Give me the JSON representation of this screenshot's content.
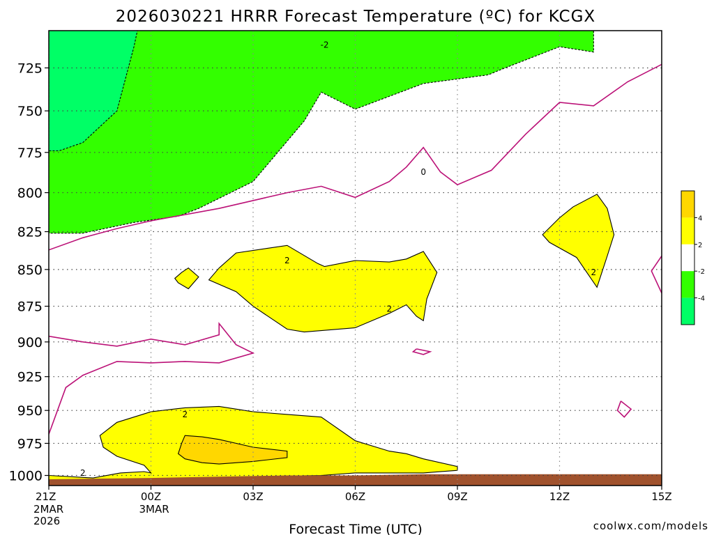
{
  "chart_data": {
    "type": "contour",
    "title": "2026030221 HRRR Forecast Temperature (ºC) for KCGX",
    "xlabel": "Forecast Time (UTC)",
    "ylabel": "",
    "credit": "coolwx.com/models",
    "x_ticks": [
      {
        "label": "21Z",
        "sub": [
          "2MAR",
          "2026"
        ]
      },
      {
        "label": "00Z",
        "sub": [
          "3MAR"
        ]
      },
      {
        "label": "03Z",
        "sub": []
      },
      {
        "label": "06Z",
        "sub": []
      },
      {
        "label": "09Z",
        "sub": []
      },
      {
        "label": "12Z",
        "sub": []
      },
      {
        "label": "15Z",
        "sub": []
      }
    ],
    "x_range_hours": [
      0,
      18
    ],
    "y_ticks": [
      725,
      750,
      775,
      800,
      825,
      850,
      875,
      900,
      925,
      950,
      975,
      1000
    ],
    "y_range_hpa": [
      704,
      1008
    ],
    "y_scale": "log-pressure",
    "grid": true,
    "colorbar": {
      "bins": [
        {
          "color": "#ffd700",
          "upper_label": "",
          "lower_label": "4"
        },
        {
          "color": "#ffff00",
          "upper_label": "4",
          "lower_label": "2"
        },
        {
          "color": "#ffffff",
          "upper_label": "2",
          "lower_label": "-2"
        },
        {
          "color": "#33ff00",
          "upper_label": "-2",
          "lower_label": "-4"
        },
        {
          "color": "#00ff66",
          "upper_label": "-4",
          "lower_label": ""
        }
      ],
      "tick_labels": [
        "4",
        "2",
        "-2",
        "-4"
      ]
    },
    "colors": {
      "zero_isotherm": "#bb1177",
      "ground": "#a0522d",
      "credit": "#e03c3c",
      "green_dark": "#00ff66",
      "green_light": "#33ff00",
      "yellow": "#ffff00",
      "gold": "#ffd700"
    },
    "contour_labels": [
      {
        "text": "-2",
        "t": 5.1,
        "p": 712
      },
      {
        "text": "0",
        "t": 8.0,
        "p": 787
      },
      {
        "text": "2",
        "t": 4.0,
        "p": 844
      },
      {
        "text": "2",
        "t": 7.0,
        "p": 877
      },
      {
        "text": "2",
        "t": 13.0,
        "p": 852
      },
      {
        "text": "2",
        "t": 1.0,
        "p": 953
      },
      {
        "text": "2",
        "t": -2.0,
        "p": 998
      }
    ],
    "regions": [
      {
        "fill": "#33ff00",
        "stroke": "#000000",
        "dash": "3,2",
        "points": [
          [
            0,
            704
          ],
          [
            13,
            704
          ],
          [
            13,
            716
          ],
          [
            12,
            713
          ],
          [
            10.4,
            725
          ],
          [
            9.9,
            729
          ],
          [
            8,
            734
          ],
          [
            6.0,
            749
          ],
          [
            5.0,
            739
          ],
          [
            4.5,
            756
          ],
          [
            3.0,
            793
          ],
          [
            1.4,
            810
          ],
          [
            0.8,
            815
          ],
          [
            -0.5,
            819
          ],
          [
            -2,
            826
          ],
          [
            -3,
            826
          ],
          [
            -3,
            704
          ]
        ]
      },
      {
        "fill": "#00ff66",
        "stroke": "#000000",
        "dash": "3,2",
        "points": [
          [
            -3,
            704
          ],
          [
            -0.4,
            704
          ],
          [
            -0.5,
            713
          ],
          [
            -1.0,
            750
          ],
          [
            -2.0,
            769
          ],
          [
            -2.7,
            774
          ],
          [
            -3,
            774
          ]
        ]
      },
      {
        "fill": "#ffff00",
        "stroke": "#000000",
        "dash": "",
        "points": [
          [
            1.7,
            857
          ],
          [
            2.0,
            849
          ],
          [
            2.5,
            839
          ],
          [
            4.0,
            834
          ],
          [
            4.9,
            846
          ],
          [
            5.1,
            848
          ],
          [
            6.0,
            844
          ],
          [
            7.0,
            845
          ],
          [
            7.5,
            843
          ],
          [
            8.0,
            838
          ],
          [
            8.4,
            852
          ],
          [
            8.1,
            870
          ],
          [
            8.0,
            885
          ],
          [
            7.8,
            882
          ],
          [
            7.5,
            874
          ],
          [
            7.0,
            880
          ],
          [
            6.0,
            890
          ],
          [
            5.0,
            892
          ],
          [
            4.5,
            893
          ],
          [
            4.0,
            891
          ],
          [
            3.0,
            875
          ],
          [
            2.5,
            865
          ]
        ]
      },
      {
        "fill": "#ffff00",
        "stroke": "#000000",
        "dash": "",
        "points": [
          [
            11.5,
            827
          ],
          [
            12.0,
            816
          ],
          [
            12.4,
            809
          ],
          [
            13.1,
            801
          ],
          [
            13.4,
            810
          ],
          [
            13.6,
            827
          ],
          [
            13.4,
            841
          ],
          [
            13.1,
            862
          ],
          [
            12.5,
            842
          ],
          [
            11.7,
            832
          ]
        ]
      },
      {
        "fill": "#ffff00",
        "stroke": "#000000",
        "dash": "",
        "points": [
          [
            0.7,
            856
          ],
          [
            0.9,
            852
          ],
          [
            1.1,
            849
          ],
          [
            1.4,
            855
          ],
          [
            1.1,
            863
          ],
          [
            0.8,
            859
          ]
        ]
      },
      {
        "fill": "#ffff00",
        "stroke": "#000000",
        "dash": "",
        "points": [
          [
            -1.7,
            1002
          ],
          [
            -0.9,
            998
          ],
          [
            -0.2,
            997
          ],
          [
            0,
            998
          ],
          [
            -0.2,
            992
          ],
          [
            -1.0,
            985
          ],
          [
            -1.4,
            978
          ],
          [
            -1.5,
            969
          ],
          [
            -1.0,
            959
          ],
          [
            0,
            951
          ],
          [
            1.0,
            948
          ],
          [
            2.0,
            947
          ],
          [
            3.0,
            951
          ],
          [
            4.0,
            953
          ],
          [
            5.0,
            955
          ],
          [
            6.0,
            973
          ],
          [
            7.0,
            981
          ],
          [
            7.5,
            983
          ],
          [
            8.0,
            987
          ],
          [
            9.0,
            993
          ],
          [
            9.0,
            996
          ],
          [
            8.0,
            998
          ],
          [
            6.0,
            998
          ],
          [
            5.0,
            1000
          ],
          [
            3.0,
            1001
          ],
          [
            1.0,
            1002
          ],
          [
            0,
            1003
          ],
          [
            -3,
            1004
          ],
          [
            -3,
            1000
          ]
        ]
      },
      {
        "fill": "#ffd700",
        "stroke": "#000000",
        "dash": "",
        "points": [
          [
            0.8,
            983
          ],
          [
            0.9,
            975
          ],
          [
            1.0,
            969
          ],
          [
            1.5,
            970
          ],
          [
            2.0,
            972
          ],
          [
            3.0,
            978
          ],
          [
            4.0,
            981
          ],
          [
            4.0,
            986
          ],
          [
            3.0,
            989
          ],
          [
            2.0,
            991
          ],
          [
            1.5,
            990
          ],
          [
            1.0,
            987
          ]
        ]
      }
    ],
    "zero_lines": [
      [
        [
          -3,
          837
        ],
        [
          -2,
          829
        ],
        [
          -1,
          823
        ],
        [
          0,
          818
        ],
        [
          2.0,
          810
        ],
        [
          4.0,
          800
        ],
        [
          5.0,
          796
        ],
        [
          6.0,
          803
        ],
        [
          7.0,
          793
        ],
        [
          7.5,
          784
        ],
        [
          8.0,
          772
        ],
        [
          8.5,
          787
        ],
        [
          9.0,
          795
        ],
        [
          10.0,
          786
        ],
        [
          11.0,
          764
        ],
        [
          12.0,
          745
        ],
        [
          13.0,
          747
        ],
        [
          14.0,
          733
        ],
        [
          15.0,
          723
        ]
      ],
      [
        [
          -3,
          896
        ],
        [
          -2.0,
          900
        ],
        [
          -1.0,
          903
        ],
        [
          0,
          898
        ],
        [
          1.0,
          902
        ],
        [
          2.0,
          895
        ],
        [
          2.0,
          887
        ],
        [
          2.5,
          902
        ],
        [
          3.0,
          908
        ],
        [
          2.0,
          915
        ],
        [
          1.0,
          914
        ],
        [
          0,
          915
        ],
        [
          -1.0,
          914
        ],
        [
          -2.0,
          924
        ],
        [
          -2.5,
          933
        ],
        [
          -3,
          968
        ]
      ],
      [
        [
          7.8,
          905
        ],
        [
          8.2,
          907
        ],
        [
          8.0,
          909
        ],
        [
          7.7,
          907
        ],
        [
          7.8,
          905
        ]
      ],
      [
        [
          13.8,
          943
        ],
        [
          14.1,
          949
        ],
        [
          13.9,
          955
        ],
        [
          13.7,
          950
        ],
        [
          13.8,
          943
        ]
      ],
      [
        [
          15,
          841
        ],
        [
          14.7,
          851
        ],
        [
          15,
          866
        ]
      ]
    ],
    "ground": [
      [
        -3,
        1003
      ],
      [
        0,
        1002
      ],
      [
        4.0,
        1000
      ],
      [
        6.0,
        1000
      ],
      [
        8.0,
        999
      ],
      [
        10.0,
        999
      ],
      [
        12.0,
        999
      ],
      [
        15,
        999
      ],
      [
        15,
        1008
      ],
      [
        -3,
        1008
      ]
    ]
  }
}
